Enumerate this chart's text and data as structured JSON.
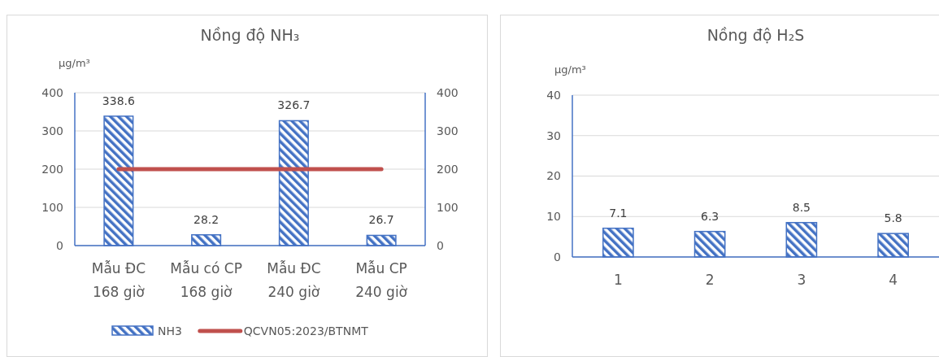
{
  "chart_data": [
    {
      "type": "bar",
      "title": "Nồng độ NH₃",
      "ylabel": "μg/m³",
      "categories": [
        "Mẫu ĐC 168 giờ",
        "Mẫu có CP 168 giờ",
        "Mẫu ĐC 240 giờ",
        "Mẫu CP 240 giờ"
      ],
      "ylim": [
        0,
        400
      ],
      "yticks": [
        0,
        100,
        200,
        300,
        400
      ],
      "y2lim": [
        0,
        400
      ],
      "y2ticks": [
        0,
        100,
        200,
        300,
        400
      ],
      "grid": "y",
      "legend": "bottom",
      "series": [
        {
          "name": "NH3",
          "type": "bar",
          "color": "#4472c4",
          "values": [
            338.6,
            28.2,
            326.7,
            26.7
          ],
          "value_labels": [
            "338.6",
            "28.2",
            "326.7",
            "26.7"
          ]
        },
        {
          "name": "QCVN05:2023/BTNMT",
          "type": "line",
          "axis": "y2",
          "color": "#c0504d",
          "values": [
            200,
            200,
            200,
            200
          ]
        }
      ]
    },
    {
      "type": "bar",
      "title": "Nồng độ H₂S",
      "ylabel": "μg/m³",
      "categories": [
        "1",
        "2",
        "3",
        "4"
      ],
      "ylim": [
        0,
        40
      ],
      "yticks": [
        0,
        10,
        20,
        30,
        40
      ],
      "grid": "y",
      "series": [
        {
          "type": "bar",
          "color": "#4472c4",
          "values": [
            7.1,
            6.3,
            8.5,
            5.8
          ],
          "value_labels": [
            "7.1",
            "6.3",
            "8.5",
            "5.8"
          ]
        }
      ]
    }
  ]
}
